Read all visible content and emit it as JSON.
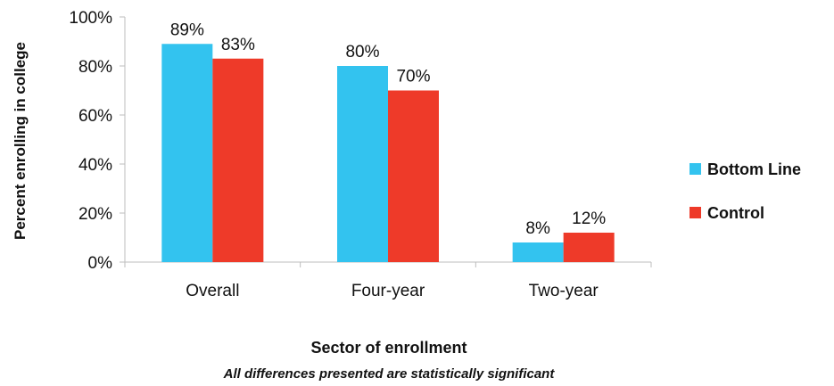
{
  "chart_data": {
    "type": "bar",
    "categories": [
      "Overall",
      "Four-year",
      "Two-year"
    ],
    "series": [
      {
        "name": "Bottom Line",
        "values": [
          89,
          80,
          8
        ],
        "color": "#33c3ef"
      },
      {
        "name": "Control",
        "values": [
          83,
          70,
          12
        ],
        "color": "#ee3a29"
      }
    ],
    "data_labels": [
      [
        "89%",
        "80%",
        "8%"
      ],
      [
        "83%",
        "70%",
        "12%"
      ]
    ],
    "y_ticks": [
      "0%",
      "20%",
      "40%",
      "60%",
      "80%",
      "100%"
    ],
    "ylim": [
      0,
      100
    ],
    "ylabel": "Percent enrolling in college",
    "xlabel": "Sector of enrollment",
    "note": "All differences presented are statistically significant",
    "legend_position": "right",
    "grid": false
  }
}
